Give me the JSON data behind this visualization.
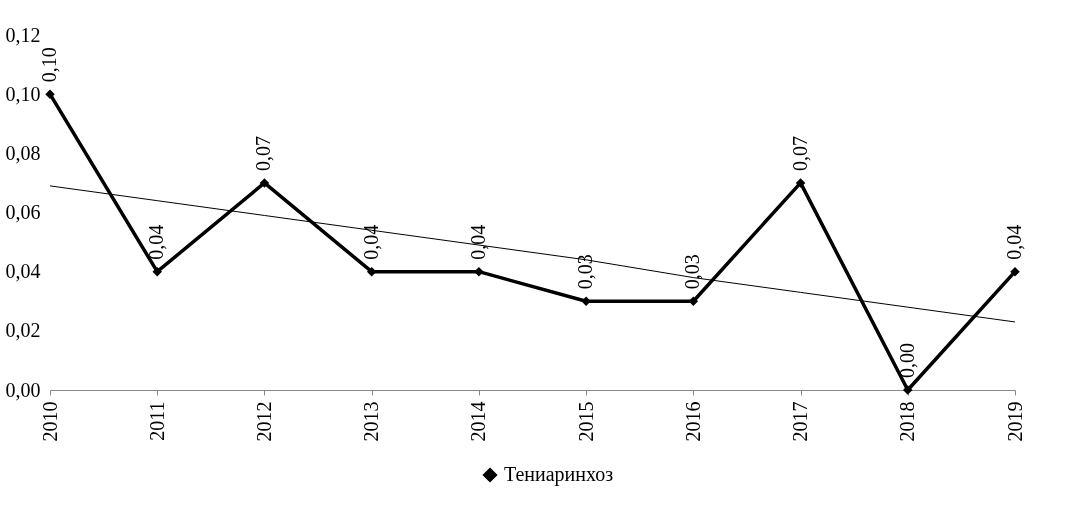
{
  "chart_data": {
    "type": "line",
    "categories": [
      "2010",
      "2011",
      "2012",
      "2013",
      "2014",
      "2015",
      "2016",
      "2017",
      "2018",
      "2019"
    ],
    "series": [
      {
        "name": "Тениаринхоз",
        "color": "#000000",
        "values": [
          0.1,
          0.04,
          0.07,
          0.04,
          0.04,
          0.03,
          0.03,
          0.07,
          0.0,
          0.04
        ],
        "value_labels": [
          "0,10",
          "0,04",
          "0,07",
          "0,04",
          "0,04",
          "0,03",
          "0,03",
          "0,07",
          "0,00",
          "0,04"
        ],
        "marker": "diamond",
        "line_style": "solid"
      },
      {
        "type": "line",
        "color": "#000000",
        "values": [
          0.069,
          0.064,
          0.059,
          0.054,
          0.049,
          0.044,
          0.038,
          0.033,
          0.028,
          0.023
        ],
        "marker": "none"
      }
    ],
    "ylim": [
      0,
      0.12
    ],
    "yticks": [
      {
        "value": 0,
        "label": "0,00"
      },
      {
        "value": 0.02,
        "label": "0,02"
      },
      {
        "value": 0.04,
        "label": "0,04"
      },
      {
        "value": 0.06,
        "label": "0,06"
      },
      {
        "value": 0.08,
        "label": "0,08"
      },
      {
        "value": 0.1,
        "label": "0,10"
      },
      {
        "value": 0.12,
        "label": "0,12"
      }
    ],
    "grid": false,
    "legend": "bottom"
  }
}
